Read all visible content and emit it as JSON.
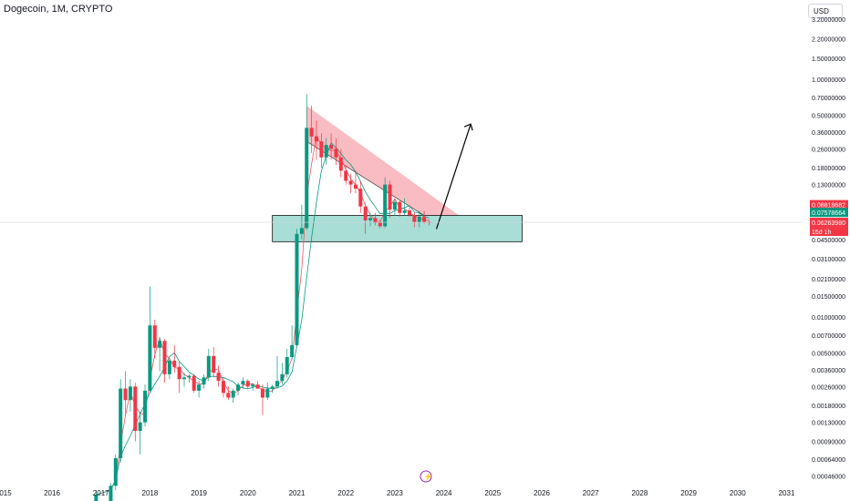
{
  "header": {
    "title": "Dogecoin, 1M, CRYPTO",
    "currency": "USD"
  },
  "price_labels": {
    "red_top": "0.08818682",
    "green": "0.07578664",
    "red_current": "0.06263980",
    "countdown": "15d 1h"
  },
  "colors": {
    "up": "#089981",
    "down": "#f23645",
    "ma": "#f7525f",
    "ma_thin": "#089981",
    "wedge_fill": "#f7a5ad",
    "support_fill": "#a8ded5",
    "arrow": "#000000"
  },
  "chart_data": {
    "type": "candlestick",
    "title": "Dogecoin, 1M, CRYPTO",
    "scale": "log",
    "y_ticks": [
      "3.20000000",
      "2.20000000",
      "1.50000000",
      "1.00000000",
      "0.70000000",
      "0.50000000",
      "0.36000000",
      "0.26000000",
      "0.18000000",
      "0.13000000",
      "0.08818682",
      "0.07578664",
      "0.06263980",
      "0.04500000",
      "0.03100000",
      "0.02100000",
      "0.01500000",
      "0.01000000",
      "0.00700000",
      "0.00500000",
      "0.00360000",
      "0.00260000",
      "0.00180000",
      "0.00130000",
      "0.00090000",
      "0.00064000",
      "0.00046000"
    ],
    "x_ticks": [
      "015",
      "2016",
      "2017",
      "2018",
      "2019",
      "2020",
      "2021",
      "2022",
      "2023",
      "2024",
      "2025",
      "2026",
      "2027",
      "2028",
      "2029",
      "2030",
      "2031"
    ],
    "annotations": {
      "resistance_wedge": "descending red channel 2021-2024",
      "support_zone": "0.045-0.07 green box",
      "projection": "upward arrow toward ~0.45"
    },
    "candles": [
      {
        "t": 2016.9,
        "o": 0.0002,
        "h": 0.00035,
        "l": 0.0002,
        "c": 0.00032
      },
      {
        "t": 2017.2,
        "o": 0.00025,
        "h": 0.0004,
        "l": 0.00022,
        "c": 0.00038
      },
      {
        "t": 2017.3,
        "o": 0.00038,
        "h": 0.0007,
        "l": 0.00035,
        "c": 0.00065
      },
      {
        "t": 2017.4,
        "o": 0.00065,
        "h": 0.003,
        "l": 0.0006,
        "c": 0.0025
      },
      {
        "t": 2017.5,
        "o": 0.0025,
        "h": 0.0035,
        "l": 0.0015,
        "c": 0.002
      },
      {
        "t": 2017.6,
        "o": 0.002,
        "h": 0.003,
        "l": 0.0016,
        "c": 0.0026
      },
      {
        "t": 2017.7,
        "o": 0.0026,
        "h": 0.0028,
        "l": 0.0009,
        "c": 0.0011
      },
      {
        "t": 2017.8,
        "o": 0.0011,
        "h": 0.0016,
        "l": 0.0007,
        "c": 0.0013
      },
      {
        "t": 2017.9,
        "o": 0.0013,
        "h": 0.0027,
        "l": 0.0012,
        "c": 0.0024
      },
      {
        "t": 2018.0,
        "o": 0.0024,
        "h": 0.018,
        "l": 0.0023,
        "c": 0.0085
      },
      {
        "t": 2018.1,
        "o": 0.0085,
        "h": 0.0095,
        "l": 0.0045,
        "c": 0.0055
      },
      {
        "t": 2018.2,
        "o": 0.0055,
        "h": 0.0068,
        "l": 0.0035,
        "c": 0.0063
      },
      {
        "t": 2018.3,
        "o": 0.0063,
        "h": 0.0065,
        "l": 0.0028,
        "c": 0.0033
      },
      {
        "t": 2018.4,
        "o": 0.0033,
        "h": 0.0045,
        "l": 0.003,
        "c": 0.0043
      },
      {
        "t": 2018.5,
        "o": 0.0043,
        "h": 0.0058,
        "l": 0.0034,
        "c": 0.0038
      },
      {
        "t": 2018.6,
        "o": 0.0038,
        "h": 0.0042,
        "l": 0.0023,
        "c": 0.003
      },
      {
        "t": 2018.7,
        "o": 0.003,
        "h": 0.0034,
        "l": 0.0026,
        "c": 0.0031
      },
      {
        "t": 2018.8,
        "o": 0.0031,
        "h": 0.0033,
        "l": 0.0028,
        "c": 0.0032
      },
      {
        "t": 2018.9,
        "o": 0.0032,
        "h": 0.0033,
        "l": 0.0023,
        "c": 0.0024
      },
      {
        "t": 2019.0,
        "o": 0.0024,
        "h": 0.0029,
        "l": 0.0021,
        "c": 0.0027
      },
      {
        "t": 2019.1,
        "o": 0.0027,
        "h": 0.0033,
        "l": 0.0025,
        "c": 0.0031
      },
      {
        "t": 2019.2,
        "o": 0.0031,
        "h": 0.0054,
        "l": 0.0029,
        "c": 0.0047
      },
      {
        "t": 2019.3,
        "o": 0.0047,
        "h": 0.0056,
        "l": 0.0031,
        "c": 0.0034
      },
      {
        "t": 2019.4,
        "o": 0.0034,
        "h": 0.0039,
        "l": 0.0026,
        "c": 0.0029
      },
      {
        "t": 2019.5,
        "o": 0.0029,
        "h": 0.0031,
        "l": 0.0021,
        "c": 0.0023
      },
      {
        "t": 2019.6,
        "o": 0.0023,
        "h": 0.0026,
        "l": 0.002,
        "c": 0.0021
      },
      {
        "t": 2019.7,
        "o": 0.0021,
        "h": 0.0025,
        "l": 0.0019,
        "c": 0.0024
      },
      {
        "t": 2019.8,
        "o": 0.0024,
        "h": 0.0028,
        "l": 0.0022,
        "c": 0.0027
      },
      {
        "t": 2019.9,
        "o": 0.0027,
        "h": 0.0031,
        "l": 0.0025,
        "c": 0.0029
      },
      {
        "t": 2020.0,
        "o": 0.0029,
        "h": 0.003,
        "l": 0.0025,
        "c": 0.0026
      },
      {
        "t": 2020.1,
        "o": 0.0026,
        "h": 0.0028,
        "l": 0.0024,
        "c": 0.0027
      },
      {
        "t": 2020.2,
        "o": 0.0027,
        "h": 0.0029,
        "l": 0.0025,
        "c": 0.0025
      },
      {
        "t": 2020.3,
        "o": 0.0025,
        "h": 0.0027,
        "l": 0.0015,
        "c": 0.0021
      },
      {
        "t": 2020.4,
        "o": 0.0021,
        "h": 0.0028,
        "l": 0.002,
        "c": 0.0025
      },
      {
        "t": 2020.5,
        "o": 0.0025,
        "h": 0.0027,
        "l": 0.0023,
        "c": 0.0026
      },
      {
        "t": 2020.6,
        "o": 0.0026,
        "h": 0.0047,
        "l": 0.0025,
        "c": 0.0029
      },
      {
        "t": 2020.7,
        "o": 0.0029,
        "h": 0.0041,
        "l": 0.0027,
        "c": 0.0033
      },
      {
        "t": 2020.8,
        "o": 0.0033,
        "h": 0.0054,
        "l": 0.0031,
        "c": 0.0046
      },
      {
        "t": 2020.9,
        "o": 0.0046,
        "h": 0.0085,
        "l": 0.0044,
        "c": 0.0058
      },
      {
        "t": 2021.0,
        "o": 0.0058,
        "h": 0.055,
        "l": 0.0057,
        "c": 0.05
      },
      {
        "t": 2021.1,
        "o": 0.05,
        "h": 0.088,
        "l": 0.045,
        "c": 0.056
      },
      {
        "t": 2021.2,
        "o": 0.056,
        "h": 0.75,
        "l": 0.054,
        "c": 0.39
      },
      {
        "t": 2021.3,
        "o": 0.39,
        "h": 0.6,
        "l": 0.24,
        "c": 0.33
      },
      {
        "t": 2021.4,
        "o": 0.33,
        "h": 0.45,
        "l": 0.21,
        "c": 0.3
      },
      {
        "t": 2021.5,
        "o": 0.3,
        "h": 0.35,
        "l": 0.18,
        "c": 0.22
      },
      {
        "t": 2021.6,
        "o": 0.22,
        "h": 0.32,
        "l": 0.19,
        "c": 0.28
      },
      {
        "t": 2021.7,
        "o": 0.28,
        "h": 0.35,
        "l": 0.21,
        "c": 0.26
      },
      {
        "t": 2021.8,
        "o": 0.26,
        "h": 0.32,
        "l": 0.19,
        "c": 0.22
      },
      {
        "t": 2021.9,
        "o": 0.22,
        "h": 0.26,
        "l": 0.15,
        "c": 0.17
      },
      {
        "t": 2022.0,
        "o": 0.17,
        "h": 0.19,
        "l": 0.13,
        "c": 0.14
      },
      {
        "t": 2022.1,
        "o": 0.14,
        "h": 0.16,
        "l": 0.11,
        "c": 0.13
      },
      {
        "t": 2022.2,
        "o": 0.13,
        "h": 0.17,
        "l": 0.11,
        "c": 0.12
      },
      {
        "t": 2022.3,
        "o": 0.12,
        "h": 0.14,
        "l": 0.075,
        "c": 0.085
      },
      {
        "t": 2022.4,
        "o": 0.085,
        "h": 0.09,
        "l": 0.05,
        "c": 0.065
      },
      {
        "t": 2022.5,
        "o": 0.065,
        "h": 0.075,
        "l": 0.058,
        "c": 0.068
      },
      {
        "t": 2022.6,
        "o": 0.068,
        "h": 0.075,
        "l": 0.059,
        "c": 0.062
      },
      {
        "t": 2022.7,
        "o": 0.062,
        "h": 0.066,
        "l": 0.056,
        "c": 0.058
      },
      {
        "t": 2022.8,
        "o": 0.058,
        "h": 0.15,
        "l": 0.056,
        "c": 0.13
      },
      {
        "t": 2022.9,
        "o": 0.13,
        "h": 0.14,
        "l": 0.068,
        "c": 0.08
      },
      {
        "t": 2023.0,
        "o": 0.08,
        "h": 0.097,
        "l": 0.071,
        "c": 0.093
      },
      {
        "t": 2023.1,
        "o": 0.093,
        "h": 0.095,
        "l": 0.07,
        "c": 0.075
      },
      {
        "t": 2023.2,
        "o": 0.075,
        "h": 0.1,
        "l": 0.072,
        "c": 0.079
      },
      {
        "t": 2023.3,
        "o": 0.079,
        "h": 0.085,
        "l": 0.07,
        "c": 0.072
      },
      {
        "t": 2023.4,
        "o": 0.072,
        "h": 0.076,
        "l": 0.057,
        "c": 0.063
      },
      {
        "t": 2023.5,
        "o": 0.063,
        "h": 0.078,
        "l": 0.057,
        "c": 0.07
      },
      {
        "t": 2023.6,
        "o": 0.07,
        "h": 0.078,
        "l": 0.061,
        "c": 0.063
      },
      {
        "t": 2023.7,
        "o": 0.063,
        "h": 0.065,
        "l": 0.059,
        "c": 0.0626
      }
    ]
  }
}
